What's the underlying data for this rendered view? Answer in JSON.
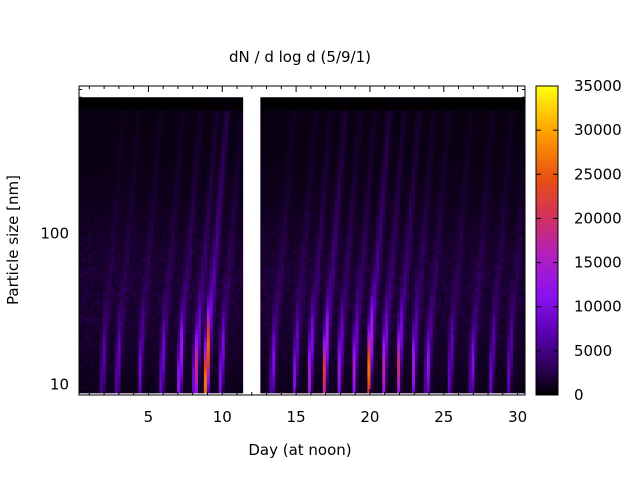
{
  "chart_data": {
    "type": "heatmap",
    "title": "dN / d log d (5/9/1)",
    "xlabel": "Day (at noon)",
    "ylabel": "Particle size [nm]",
    "xlim": [
      0.3,
      30.5
    ],
    "ylim": [
      8.5,
      950
    ],
    "y_scale": "log",
    "x_ticks": [
      5,
      10,
      15,
      20,
      25,
      30
    ],
    "y_ticks": [
      10,
      100
    ],
    "x_tick_labels": [
      "5",
      "10",
      "15",
      "20",
      "25",
      "30"
    ],
    "y_tick_labels": [
      "10",
      "100"
    ],
    "colorbar": {
      "range": [
        0,
        35000
      ],
      "ticks": [
        0,
        5000,
        10000,
        15000,
        20000,
        25000,
        30000,
        35000
      ],
      "tick_labels": [
        "0",
        "5000",
        "10000",
        "15000",
        "20000",
        "25000",
        "30000",
        "35000"
      ],
      "palette": [
        "#000000",
        "#3a007a",
        "#8000ff",
        "#c020a0",
        "#e04010",
        "#ff9000",
        "#ffff00"
      ]
    },
    "data_gap_days": [
      11.3,
      12.5
    ],
    "size_range_nm": [
      8.8,
      800
    ],
    "growth_events": [
      {
        "day": 2.0,
        "peak": 6000
      },
      {
        "day": 3.0,
        "peak": 7000
      },
      {
        "day": 4.5,
        "peak": 8000
      },
      {
        "day": 6.0,
        "peak": 9000
      },
      {
        "day": 7.2,
        "peak": 14000
      },
      {
        "day": 8.3,
        "peak": 17000
      },
      {
        "day": 9.0,
        "peak": 32000
      },
      {
        "day": 10.0,
        "peak": 11000
      },
      {
        "day": 13.5,
        "peak": 9000
      },
      {
        "day": 15.0,
        "peak": 10000
      },
      {
        "day": 16.0,
        "peak": 14000
      },
      {
        "day": 17.0,
        "peak": 21000
      },
      {
        "day": 18.0,
        "peak": 12000
      },
      {
        "day": 19.0,
        "peak": 13000
      },
      {
        "day": 20.0,
        "peak": 26000
      },
      {
        "day": 21.0,
        "peak": 16000
      },
      {
        "day": 22.0,
        "peak": 17000
      },
      {
        "day": 23.0,
        "peak": 12000
      },
      {
        "day": 24.0,
        "peak": 10000
      },
      {
        "day": 25.5,
        "peak": 8000
      },
      {
        "day": 27.0,
        "peak": 9000
      },
      {
        "day": 28.3,
        "peak": 8000
      },
      {
        "day": 29.5,
        "peak": 7000
      }
    ]
  }
}
